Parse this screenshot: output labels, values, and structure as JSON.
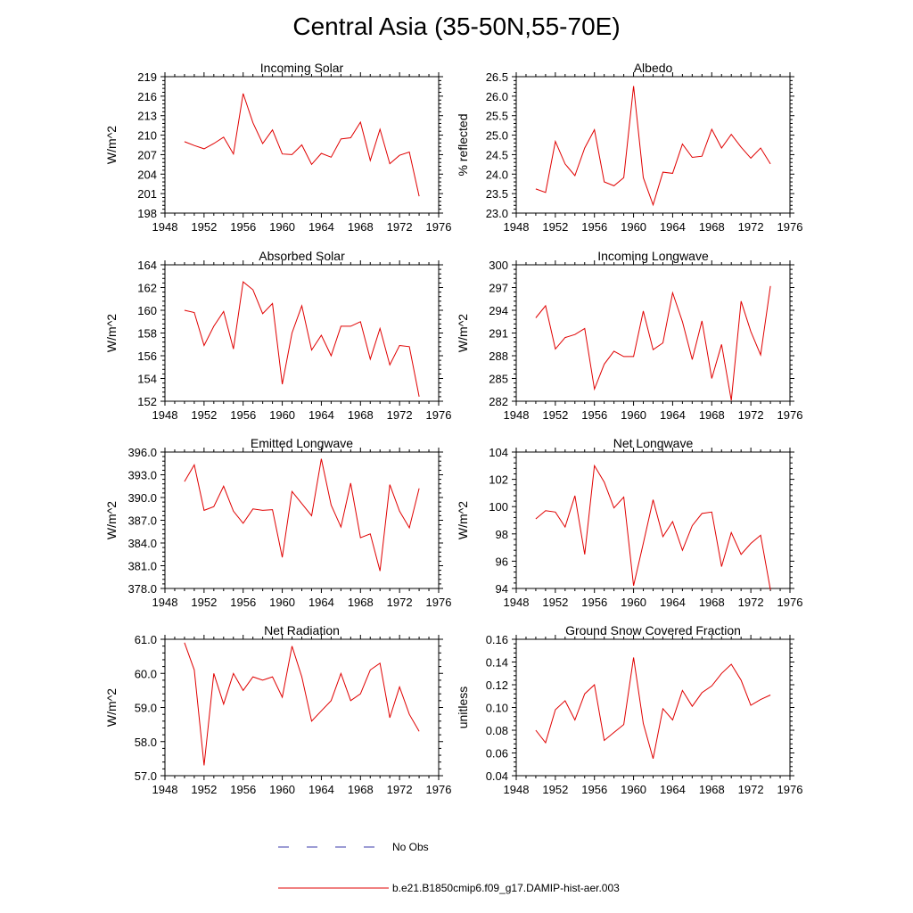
{
  "title": "Central Asia (35-50N,55-70E)",
  "legend": {
    "obs_label": "No Obs",
    "model_label": "b.e21.B1850cmip6.f09_g17.DAMIP-hist-aer.003",
    "obs_color": "#3a3aa8",
    "model_color": "#e00000"
  },
  "chart_data": [
    {
      "type": "line",
      "title": "Incoming Solar",
      "ylabel": "W/m^2",
      "xlim": [
        1948,
        1976
      ],
      "ylim": [
        198,
        219
      ],
      "xticks": [
        "1948",
        "1952",
        "1956",
        "1960",
        "1964",
        "1968",
        "1972",
        "1976"
      ],
      "yticks": [
        "198",
        "201",
        "204",
        "207",
        "210",
        "213",
        "216",
        "219"
      ],
      "x": [
        1950,
        1951,
        1952,
        1953,
        1954,
        1955,
        1956,
        1957,
        1958,
        1959,
        1960,
        1961,
        1962,
        1963,
        1964,
        1965,
        1966,
        1967,
        1968,
        1969,
        1970,
        1971,
        1972,
        1973,
        1974
      ],
      "values": [
        209.0,
        208.4,
        207.9,
        208.7,
        209.7,
        207.1,
        216.4,
        211.9,
        208.7,
        210.8,
        207.1,
        207.0,
        208.5,
        205.5,
        207.2,
        206.6,
        209.4,
        209.6,
        212.0,
        206.1,
        210.9,
        205.6,
        206.9,
        207.4,
        200.6
      ]
    },
    {
      "type": "line",
      "title": "Albedo",
      "ylabel": "% reflected",
      "xlim": [
        1948,
        1976
      ],
      "ylim": [
        23.0,
        26.5
      ],
      "xticks": [
        "1948",
        "1952",
        "1956",
        "1960",
        "1964",
        "1968",
        "1972",
        "1976"
      ],
      "yticks": [
        "23.0",
        "23.5",
        "24.0",
        "24.5",
        "25.0",
        "25.5",
        "26.0",
        "26.5"
      ],
      "x": [
        1950,
        1951,
        1952,
        1953,
        1954,
        1955,
        1956,
        1957,
        1958,
        1959,
        1960,
        1961,
        1962,
        1963,
        1964,
        1965,
        1966,
        1967,
        1968,
        1969,
        1970,
        1971,
        1972,
        1973,
        1974
      ],
      "values": [
        23.62,
        23.53,
        24.84,
        24.26,
        23.96,
        24.67,
        25.14,
        23.8,
        23.7,
        23.91,
        26.26,
        23.91,
        23.21,
        24.05,
        24.02,
        24.77,
        24.43,
        24.46,
        25.15,
        24.67,
        25.02,
        24.69,
        24.41,
        24.67,
        24.26
      ]
    },
    {
      "type": "line",
      "title": "Absorbed Solar",
      "ylabel": "W/m^2",
      "xlim": [
        1948,
        1976
      ],
      "ylim": [
        152,
        164
      ],
      "xticks": [
        "1948",
        "1952",
        "1956",
        "1960",
        "1964",
        "1968",
        "1972",
        "1976"
      ],
      "yticks": [
        "152",
        "154",
        "156",
        "158",
        "160",
        "162",
        "164"
      ],
      "x": [
        1950,
        1951,
        1952,
        1953,
        1954,
        1955,
        1956,
        1957,
        1958,
        1959,
        1960,
        1961,
        1962,
        1963,
        1964,
        1965,
        1966,
        1967,
        1968,
        1969,
        1970,
        1971,
        1972,
        1973,
        1974
      ],
      "values": [
        160.0,
        159.8,
        156.9,
        158.6,
        159.9,
        156.6,
        162.5,
        161.8,
        159.7,
        160.6,
        153.5,
        158.0,
        160.4,
        156.5,
        157.8,
        156.0,
        158.6,
        158.6,
        159.0,
        155.7,
        158.4,
        155.2,
        156.9,
        156.8,
        152.4
      ]
    },
    {
      "type": "line",
      "title": "Incoming Longwave",
      "ylabel": "W/m^2",
      "xlim": [
        1948,
        1976
      ],
      "ylim": [
        282,
        300
      ],
      "xticks": [
        "1948",
        "1952",
        "1956",
        "1960",
        "1964",
        "1968",
        "1972",
        "1976"
      ],
      "yticks": [
        "282",
        "285",
        "288",
        "291",
        "294",
        "297",
        "300"
      ],
      "x": [
        1950,
        1951,
        1952,
        1953,
        1954,
        1955,
        1956,
        1957,
        1958,
        1959,
        1960,
        1961,
        1962,
        1963,
        1964,
        1965,
        1966,
        1967,
        1968,
        1969,
        1970,
        1971,
        1972,
        1973,
        1974
      ],
      "values": [
        293.0,
        294.6,
        288.9,
        290.4,
        290.8,
        291.6,
        283.6,
        286.9,
        288.6,
        287.9,
        287.9,
        293.9,
        288.8,
        289.7,
        296.3,
        292.5,
        287.5,
        292.6,
        285.0,
        289.5,
        282.1,
        295.2,
        291.2,
        288.1,
        297.2
      ]
    },
    {
      "type": "line",
      "title": "Emitted Longwave",
      "ylabel": "W/m^2",
      "xlim": [
        1948,
        1976
      ],
      "ylim": [
        378.0,
        396.0
      ],
      "xticks": [
        "1948",
        "1952",
        "1956",
        "1960",
        "1964",
        "1968",
        "1972",
        "1976"
      ],
      "yticks": [
        "378.0",
        "381.0",
        "384.0",
        "387.0",
        "390.0",
        "393.0",
        "396.0"
      ],
      "x": [
        1950,
        1951,
        1952,
        1953,
        1954,
        1955,
        1956,
        1957,
        1958,
        1959,
        1960,
        1961,
        1962,
        1963,
        1964,
        1965,
        1966,
        1967,
        1968,
        1969,
        1970,
        1971,
        1972,
        1973,
        1974
      ],
      "values": [
        392.1,
        394.3,
        388.3,
        388.8,
        391.5,
        388.2,
        386.6,
        388.5,
        388.3,
        388.4,
        382.1,
        390.8,
        389.2,
        387.6,
        395.1,
        389.0,
        386.1,
        391.9,
        384.7,
        385.2,
        380.3,
        391.7,
        388.2,
        386.0,
        391.2
      ]
    },
    {
      "type": "line",
      "title": "Net Longwave",
      "ylabel": "W/m^2",
      "xlim": [
        1948,
        1976
      ],
      "ylim": [
        94,
        104
      ],
      "xticks": [
        "1948",
        "1952",
        "1956",
        "1960",
        "1964",
        "1968",
        "1972",
        "1976"
      ],
      "yticks": [
        "94",
        "96",
        "98",
        "100",
        "102",
        "104"
      ],
      "x": [
        1950,
        1951,
        1952,
        1953,
        1954,
        1955,
        1956,
        1957,
        1958,
        1959,
        1960,
        1961,
        1962,
        1963,
        1964,
        1965,
        1966,
        1967,
        1968,
        1969,
        1970,
        1971,
        1972,
        1973,
        1974
      ],
      "values": [
        99.1,
        99.7,
        99.6,
        98.5,
        100.8,
        96.5,
        103.0,
        101.8,
        99.9,
        100.7,
        94.2,
        97.3,
        100.5,
        97.8,
        98.9,
        96.8,
        98.6,
        99.5,
        99.6,
        95.6,
        98.1,
        96.5,
        97.3,
        97.9,
        93.9
      ]
    },
    {
      "type": "line",
      "title": "Net Radiation",
      "ylabel": "W/m^2",
      "xlim": [
        1948,
        1976
      ],
      "ylim": [
        57.0,
        61.0
      ],
      "xticks": [
        "1948",
        "1952",
        "1956",
        "1960",
        "1964",
        "1968",
        "1972",
        "1976"
      ],
      "yticks": [
        "57.0",
        "58.0",
        "59.0",
        "60.0",
        "61.0"
      ],
      "x": [
        1950,
        1951,
        1952,
        1953,
        1954,
        1955,
        1956,
        1957,
        1958,
        1959,
        1960,
        1961,
        1962,
        1963,
        1964,
        1965,
        1966,
        1967,
        1968,
        1969,
        1970,
        1971,
        1972,
        1973,
        1974
      ],
      "values": [
        60.9,
        60.1,
        57.3,
        60.0,
        59.1,
        60.0,
        59.5,
        59.9,
        59.8,
        59.9,
        59.3,
        60.8,
        59.9,
        58.6,
        58.9,
        59.2,
        60.0,
        59.2,
        59.4,
        60.1,
        60.3,
        58.7,
        59.6,
        58.8,
        58.3
      ]
    },
    {
      "type": "line",
      "title": "Ground Snow Covered Fraction",
      "ylabel": "unitless",
      "xlim": [
        1948,
        1976
      ],
      "ylim": [
        0.04,
        0.16
      ],
      "xticks": [
        "1948",
        "1952",
        "1956",
        "1960",
        "1964",
        "1968",
        "1972",
        "1976"
      ],
      "yticks": [
        "0.04",
        "0.06",
        "0.08",
        "0.10",
        "0.12",
        "0.14",
        "0.16"
      ],
      "x": [
        1950,
        1951,
        1952,
        1953,
        1954,
        1955,
        1956,
        1957,
        1958,
        1959,
        1960,
        1961,
        1962,
        1963,
        1964,
        1965,
        1966,
        1967,
        1968,
        1969,
        1970,
        1971,
        1972,
        1973,
        1974
      ],
      "values": [
        0.08,
        0.069,
        0.098,
        0.106,
        0.089,
        0.112,
        0.12,
        0.071,
        0.078,
        0.085,
        0.144,
        0.086,
        0.055,
        0.099,
        0.089,
        0.115,
        0.101,
        0.113,
        0.119,
        0.13,
        0.138,
        0.124,
        0.102,
        0.107,
        0.111
      ]
    }
  ]
}
